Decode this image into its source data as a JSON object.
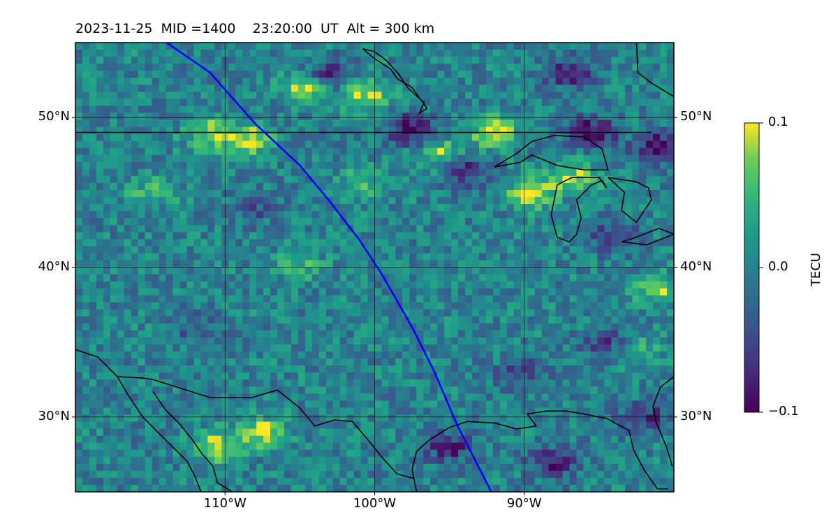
{
  "title": "2023-11-25  MID =1400    23:20:00  UT  Alt = 300 km",
  "map": {
    "lon_range": [
      -120,
      -80
    ],
    "lat_range": [
      25,
      55
    ],
    "lat_ticks": [
      {
        "value": 50,
        "label": "50°N"
      },
      {
        "value": 40,
        "label": "40°N"
      },
      {
        "value": 30,
        "label": "30°N"
      }
    ],
    "lon_ticks": [
      {
        "value": -110,
        "label": "110°W"
      },
      {
        "value": -100,
        "label": "100°W"
      },
      {
        "value": -90,
        "label": "90°W"
      }
    ],
    "gridlines": true,
    "coastline_color": "#000000",
    "track_color": "#0000ff",
    "satellite_track": [
      [
        -113.9,
        55
      ],
      [
        -111,
        53
      ],
      [
        -108,
        49.6
      ],
      [
        -105,
        46.8
      ],
      [
        -103,
        44.4
      ],
      [
        -101,
        41.8
      ],
      [
        -99.5,
        39.5
      ],
      [
        -97.5,
        36
      ],
      [
        -96,
        33
      ],
      [
        -94.5,
        29.5
      ],
      [
        -92.2,
        25
      ]
    ],
    "colormap": "viridis"
  },
  "colorbar": {
    "title": "TECU",
    "min": -0.1,
    "max": 0.1,
    "ticks": [
      {
        "value": 0.1,
        "label": "0.1"
      },
      {
        "value": 0.0,
        "label": "0.0"
      },
      {
        "value": -0.1,
        "label": "−0.1"
      }
    ]
  },
  "anomaly_blobs": [
    {
      "lon": -104.5,
      "lat": 52.0,
      "v": 0.1
    },
    {
      "lon": -100.5,
      "lat": 51.6,
      "v": 0.09
    },
    {
      "lon": -108.5,
      "lat": 48.5,
      "v": 0.09
    },
    {
      "lon": -111,
      "lat": 49.0,
      "v": 0.08
    },
    {
      "lon": -95.5,
      "lat": 47.5,
      "v": 0.08
    },
    {
      "lon": -92.0,
      "lat": 49.0,
      "v": 0.1
    },
    {
      "lon": -89.5,
      "lat": 45.0,
      "v": 0.1
    },
    {
      "lon": -86.5,
      "lat": 46.0,
      "v": 0.08
    },
    {
      "lon": -105.0,
      "lat": 40.0,
      "v": 0.05
    },
    {
      "lon": -107.5,
      "lat": 29.0,
      "v": 0.09
    },
    {
      "lon": -110.5,
      "lat": 28.0,
      "v": 0.09
    },
    {
      "lon": -81,
      "lat": 38.5,
      "v": 0.07
    },
    {
      "lon": -82.5,
      "lat": 34.5,
      "v": 0.06
    },
    {
      "lon": -101.0,
      "lat": 45.5,
      "v": 0.05
    },
    {
      "lon": -115.0,
      "lat": 45.0,
      "v": 0.05
    },
    {
      "lon": -103.0,
      "lat": 52.8,
      "v": -0.09
    },
    {
      "lon": -97.5,
      "lat": 49.2,
      "v": -0.1
    },
    {
      "lon": -85.5,
      "lat": 49.0,
      "v": -0.1
    },
    {
      "lon": -81,
      "lat": 48.0,
      "v": -0.1
    },
    {
      "lon": -87.0,
      "lat": 53.0,
      "v": -0.08
    },
    {
      "lon": -94.0,
      "lat": 46.5,
      "v": -0.09
    },
    {
      "lon": -84.0,
      "lat": 42.0,
      "v": -0.07
    },
    {
      "lon": -90.0,
      "lat": 33.0,
      "v": -0.06
    },
    {
      "lon": -84.5,
      "lat": 35.0,
      "v": -0.07
    },
    {
      "lon": -95.0,
      "lat": 28.0,
      "v": -0.08
    },
    {
      "lon": -88.0,
      "lat": 27.0,
      "v": -0.08
    },
    {
      "lon": -82.0,
      "lat": 30.0,
      "v": -0.07
    },
    {
      "lon": -112.0,
      "lat": 36.0,
      "v": -0.04
    },
    {
      "lon": -108.0,
      "lat": 44.0,
      "v": -0.04
    }
  ],
  "coastlines": [
    [
      [
        -120,
        49
      ],
      [
        -81.5,
        49
      ]
    ],
    [
      [
        -100.8,
        54.6
      ],
      [
        -100.1,
        54
      ],
      [
        -98.9,
        53.2
      ],
      [
        -98.5,
        52.6
      ],
      [
        -97.5,
        52
      ],
      [
        -97,
        51.3
      ],
      [
        -96.5,
        50.6
      ],
      [
        -97,
        50.3
      ],
      [
        -96.7,
        51.0
      ],
      [
        -97.8,
        52.0
      ],
      [
        -98.4,
        52.9
      ],
      [
        -99.2,
        53.8
      ],
      [
        -100.0,
        54.4
      ],
      [
        -100.8,
        54.6
      ]
    ],
    [
      [
        -89.5,
        48.4
      ],
      [
        -88.0,
        48.8
      ],
      [
        -86.0,
        48.7
      ],
      [
        -84.8,
        47.9
      ],
      [
        -84.4,
        46.5
      ],
      [
        -86.0,
        46.5
      ],
      [
        -87.8,
        46.8
      ],
      [
        -89.5,
        47.5
      ],
      [
        -90.3,
        47.0
      ],
      [
        -92.0,
        46.7
      ],
      [
        -90.5,
        47.6
      ],
      [
        -89.5,
        48.4
      ]
    ],
    [
      [
        -87.8,
        45.5
      ],
      [
        -88.2,
        43.5
      ],
      [
        -87.8,
        42.0
      ],
      [
        -87.0,
        41.7
      ],
      [
        -86.5,
        42.2
      ],
      [
        -86.2,
        43.3
      ],
      [
        -86.5,
        44.5
      ],
      [
        -85.5,
        45.5
      ],
      [
        -84.8,
        45.8
      ],
      [
        -84.5,
        45.3
      ],
      [
        -85.0,
        46.0
      ],
      [
        -86.8,
        46.0
      ],
      [
        -87.8,
        45.5
      ]
    ],
    [
      [
        -84.4,
        46.0
      ],
      [
        -82.5,
        45.7
      ],
      [
        -81.7,
        45.3
      ],
      [
        -81.5,
        44.5
      ],
      [
        -82.5,
        43.0
      ],
      [
        -83.5,
        43.8
      ],
      [
        -83.3,
        45.0
      ],
      [
        -84.4,
        46.0
      ]
    ],
    [
      [
        -83.5,
        41.7
      ],
      [
        -81.8,
        41.5
      ],
      [
        -80,
        42.2
      ],
      [
        -81.0,
        42.6
      ],
      [
        -82.8,
        41.9
      ],
      [
        -83.5,
        41.7
      ]
    ],
    [
      [
        -120,
        34.5
      ],
      [
        -118.5,
        34.0
      ],
      [
        -117.2,
        32.7
      ],
      [
        -116.5,
        31.5
      ],
      [
        -115.5,
        30.0
      ],
      [
        -114.5,
        29.0
      ],
      [
        -113.5,
        28.0
      ],
      [
        -112.5,
        27.0
      ],
      [
        -112.0,
        26.0
      ],
      [
        -111.6,
        25.0
      ]
    ],
    [
      [
        -114.8,
        31.7
      ],
      [
        -114.0,
        30.5
      ],
      [
        -113.0,
        29.5
      ],
      [
        -112.2,
        28.5
      ],
      [
        -111.5,
        27.5
      ],
      [
        -110.8,
        26.7
      ],
      [
        -110.5,
        25.6
      ],
      [
        -109.5,
        25.0
      ]
    ],
    [
      [
        -117.2,
        32.7
      ],
      [
        -115.5,
        32.6
      ],
      [
        -114.8,
        32.5
      ],
      [
        -111.0,
        31.3
      ],
      [
        -108.2,
        31.3
      ],
      [
        -106.5,
        31.8
      ],
      [
        -105.0,
        30.6
      ],
      [
        -104.0,
        29.4
      ],
      [
        -102.7,
        29.8
      ],
      [
        -101.5,
        29.7
      ],
      [
        -100.3,
        28.3
      ],
      [
        -99.5,
        27.3
      ],
      [
        -98.5,
        26.2
      ],
      [
        -97.4,
        25.9
      ]
    ],
    [
      [
        -97.2,
        25
      ],
      [
        -97.5,
        26.5
      ],
      [
        -97.2,
        27.7
      ],
      [
        -96.3,
        28.5
      ],
      [
        -95.0,
        29.3
      ],
      [
        -93.8,
        29.7
      ],
      [
        -92.0,
        29.6
      ],
      [
        -90.5,
        29.2
      ],
      [
        -89.2,
        29.4
      ],
      [
        -89.8,
        30.2
      ],
      [
        -88.5,
        30.4
      ],
      [
        -87.2,
        30.4
      ],
      [
        -86.0,
        30.2
      ],
      [
        -84.5,
        29.9
      ],
      [
        -83.0,
        29.1
      ],
      [
        -82.7,
        27.8
      ],
      [
        -82.0,
        26.5
      ],
      [
        -81.1,
        25.2
      ],
      [
        -80.4,
        25.2
      ]
    ],
    [
      [
        -80.1,
        26.7
      ],
      [
        -80.5,
        28.0
      ],
      [
        -81.2,
        29.7
      ],
      [
        -81.4,
        30.7
      ],
      [
        -80.9,
        32.0
      ],
      [
        -80,
        32.7
      ]
    ],
    [
      [
        -82.5,
        55
      ],
      [
        -82.4,
        53.0
      ],
      [
        -81.5,
        52.3
      ],
      [
        -80,
        51.4
      ]
    ]
  ]
}
